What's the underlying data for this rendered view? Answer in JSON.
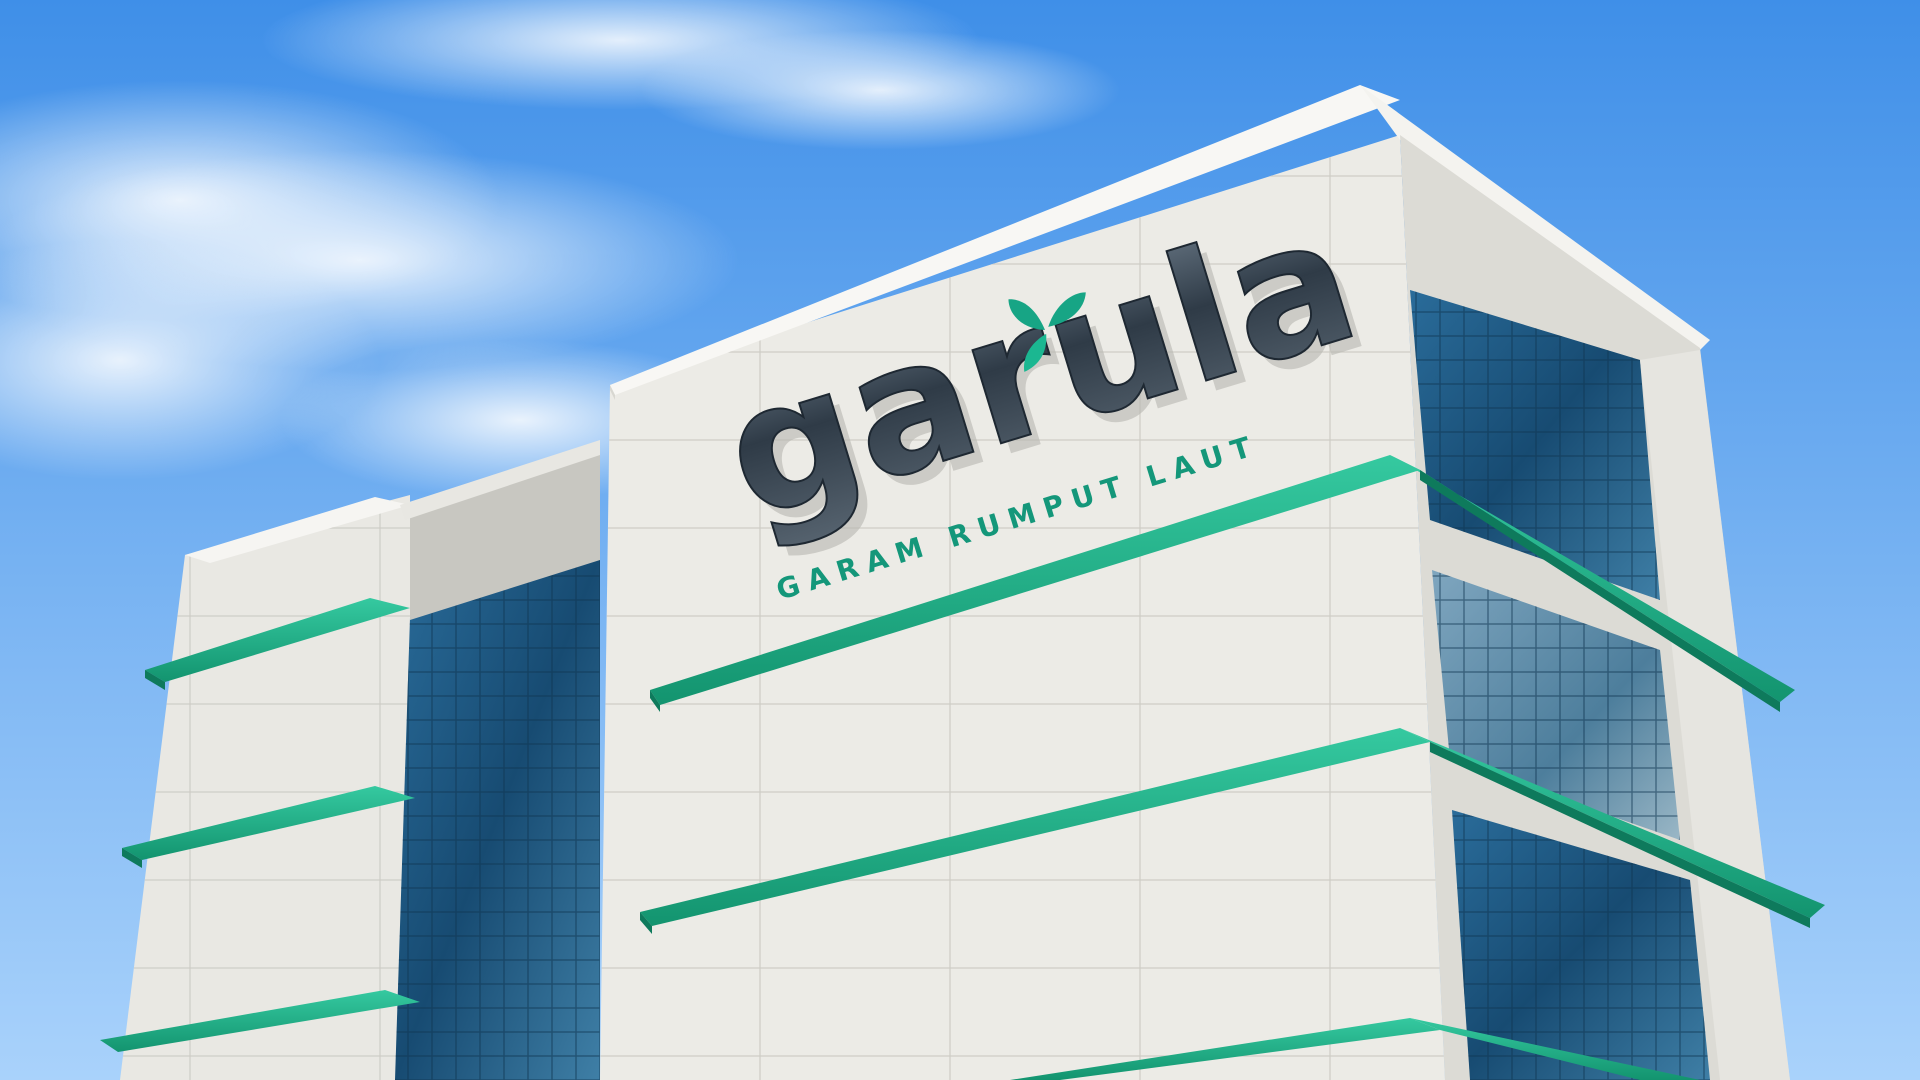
{
  "sign": {
    "brand_name": "garula",
    "tagline": "GARAM RUMPUT LAUT",
    "leaf_icon": "leaf-sprout-icon"
  },
  "colors": {
    "sky_top": "#3f8fe8",
    "sky_bottom": "#a9d2fb",
    "facade": "#ecebe6",
    "facade_shade": "#d9d8d2",
    "accent_green": "#1fb28d",
    "glass": "#1d5a86",
    "letter_steel": "#3d4a57"
  }
}
